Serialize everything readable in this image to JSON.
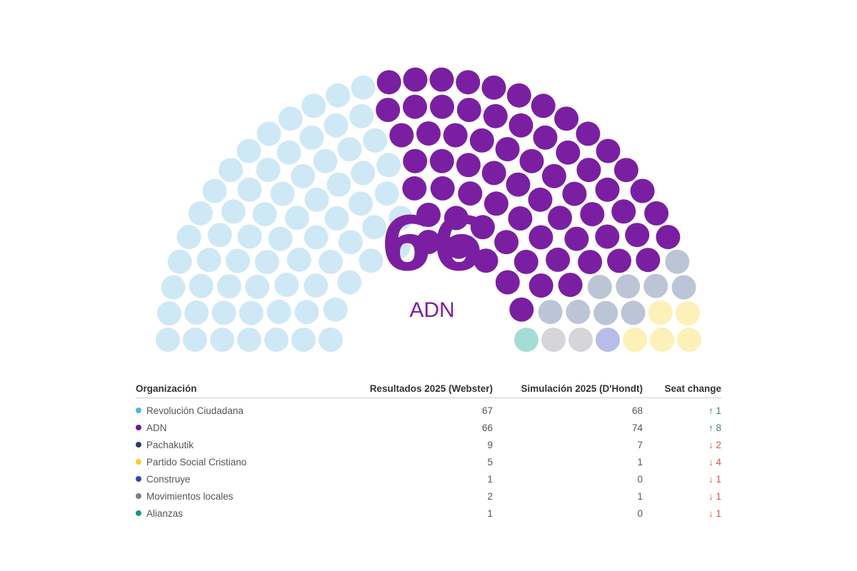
{
  "chart_data": {
    "type": "parliament",
    "total_seats": 151,
    "highlight": {
      "value": "66",
      "label": "ADN",
      "color": "#7b1fa2"
    },
    "seat_order": [
      {
        "name": "Revolución Ciudadana",
        "seats": 67,
        "color": "#cfe8f6"
      },
      {
        "name": "ADN",
        "seats": 66,
        "color": "#7b1fa2"
      },
      {
        "name": "Pachakutik",
        "seats": 9,
        "color": "#bcc5d6"
      },
      {
        "name": "Partido Social Cristiano",
        "seats": 5,
        "color": "#fdf0b8"
      },
      {
        "name": "Construye",
        "seats": 1,
        "color": "#b8bce8"
      },
      {
        "name": "Movimientos locales",
        "seats": 2,
        "color": "#d5d5da"
      },
      {
        "name": "Alianzas",
        "seats": 1,
        "color": "#a6dcd6"
      }
    ]
  },
  "table": {
    "headers": {
      "organization": "Organización",
      "results": "Resultados 2025 (Webster)",
      "simulation": "Simulación 2025 (D'Hondt)",
      "change": "Seat change"
    },
    "rows": [
      {
        "name": "Revolución Ciudadana",
        "dot": "#4fb6df",
        "results": "67",
        "simulation": "68",
        "change": "↑ 1",
        "direction": "up"
      },
      {
        "name": "ADN",
        "dot": "#6a1b9a",
        "results": "66",
        "simulation": "74",
        "change": "↑ 8",
        "direction": "up"
      },
      {
        "name": "Pachakutik",
        "dot": "#2d3a66",
        "results": "9",
        "simulation": "7",
        "change": "↓ 2",
        "direction": "down"
      },
      {
        "name": "Partido Social Cristiano",
        "dot": "#f7cf2a",
        "results": "5",
        "simulation": "1",
        "change": "↓ 4",
        "direction": "down"
      },
      {
        "name": "Construye",
        "dot": "#2f45c2",
        "results": "1",
        "simulation": "0",
        "change": "↓ 1",
        "direction": "down"
      },
      {
        "name": "Movimientos locales",
        "dot": "#7d7d84",
        "results": "2",
        "simulation": "1",
        "change": "↓ 1",
        "direction": "down"
      },
      {
        "name": "Alianzas",
        "dot": "#14978a",
        "results": "1",
        "simulation": "0",
        "change": "↓ 1",
        "direction": "down"
      }
    ]
  }
}
